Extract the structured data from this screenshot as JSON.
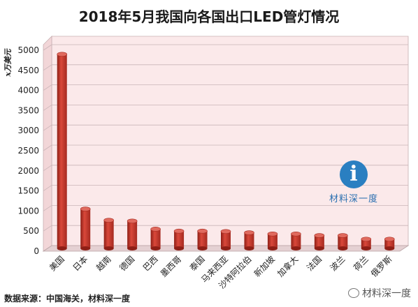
{
  "chart_data": {
    "type": "bar",
    "title": "2018年5月我国向各国出口LED管灯情况",
    "ylabel": "x万美元",
    "xlabel": "",
    "ylim": [
      0,
      5000
    ],
    "yticks": [
      0,
      500,
      1000,
      1500,
      2000,
      2500,
      3000,
      3500,
      4000,
      4500,
      5000
    ],
    "grid": true,
    "categories": [
      "美国",
      "日本",
      "越南",
      "德国",
      "巴西",
      "墨西哥",
      "泰国",
      "马来西亚",
      "沙特阿拉伯",
      "新加坡",
      "加拿大",
      "法国",
      "波兰",
      "荷兰",
      "俄罗斯"
    ],
    "values": [
      4830,
      980,
      700,
      680,
      480,
      430,
      430,
      420,
      390,
      360,
      360,
      320,
      320,
      230,
      230
    ],
    "bar_color": "#c0392b"
  },
  "source_note": "数据来源：中国海关，材料深一度",
  "logo_text": "材料深一度",
  "watermark": "材料深一度"
}
